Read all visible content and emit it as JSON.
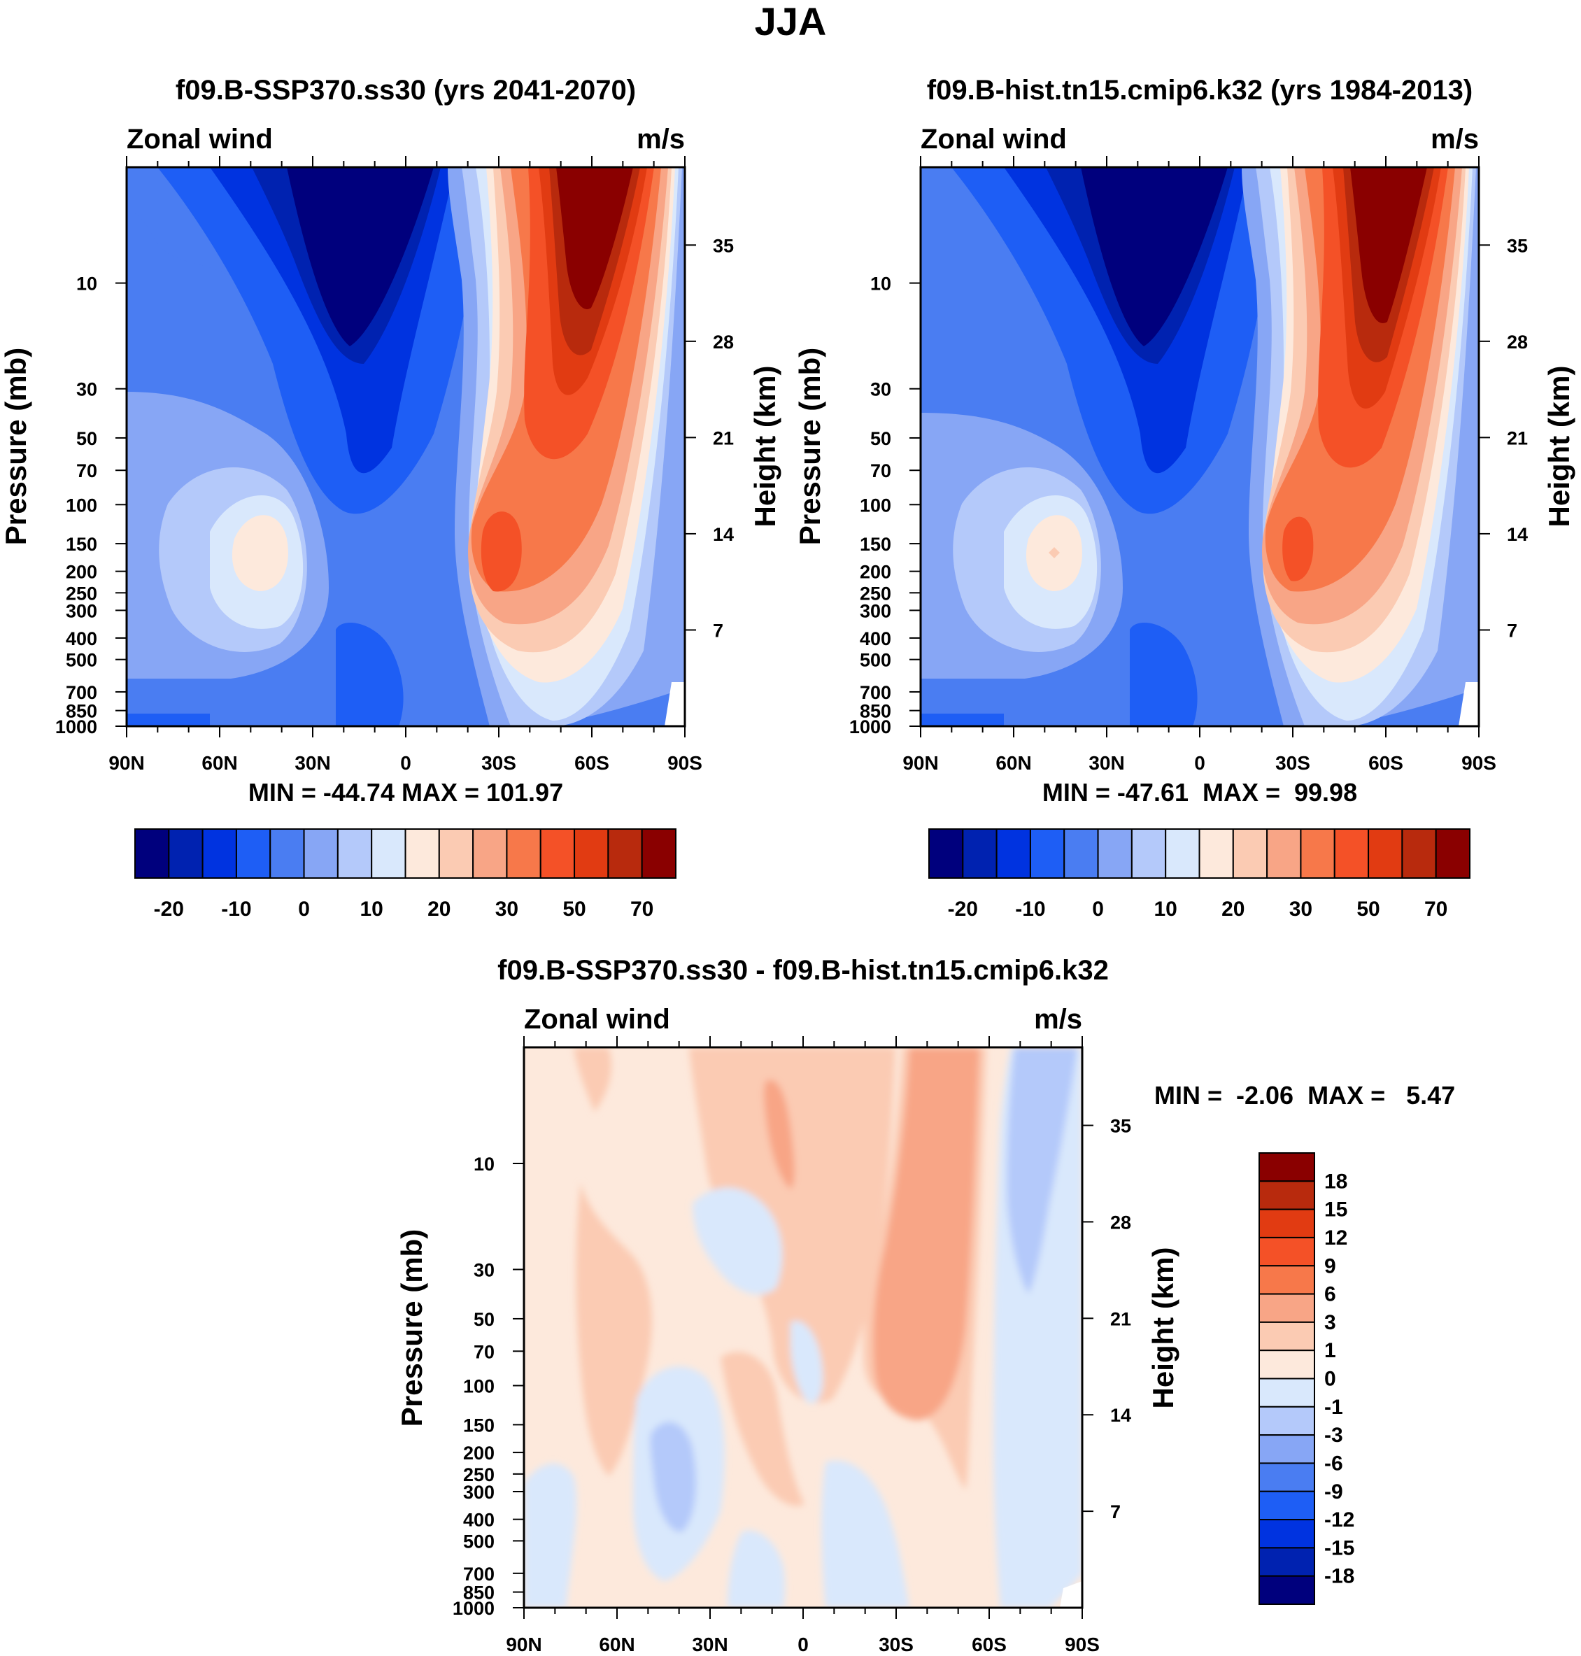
{
  "figure_title": "JJA",
  "colors": {
    "full_scale": [
      "#00007d",
      "#0022b0",
      "#0033e0",
      "#1e5ef5",
      "#4a7df2",
      "#87a6f5",
      "#b4c9fa",
      "#d9e8fc",
      "#fde9dc",
      "#fbcbb3",
      "#f8a586",
      "#f7784a",
      "#f45127",
      "#e13b12",
      "#b82a0d",
      "#8a0000"
    ],
    "diff_scale": [
      "#00007d",
      "#0022b0",
      "#0033e0",
      "#1e5ef5",
      "#4a7df2",
      "#87a6f5",
      "#b4c9fa",
      "#d9e8fc",
      "#fde9dc",
      "#fbcbb3",
      "#f8a586",
      "#f7784a",
      "#f45127",
      "#e13b12",
      "#b82a0d",
      "#8a0000"
    ]
  },
  "chart_data": [
    {
      "type": "heatmap",
      "title": "f09.B-SSP370.ss30 (yrs 2041-2070)",
      "field_label": "Zonal wind",
      "units_label": "m/s",
      "ylabel": "Pressure (mb)",
      "ylabel_right": "Height (km)",
      "x_ticks": [
        "90N",
        "60N",
        "30N",
        "0",
        "30S",
        "60S",
        "90S"
      ],
      "y_ticks": [
        "10",
        "30",
        "50",
        "70",
        "100",
        "150",
        "200",
        "250",
        "300",
        "400",
        "500",
        "700",
        "850",
        "1000"
      ],
      "height_ticks": [
        "35",
        "28",
        "21",
        "14",
        "7"
      ],
      "stats": "MIN = -44.74  MAX = 101.97",
      "colorbar_labels": [
        "-20",
        "-10",
        "0",
        "10",
        "20",
        "30",
        "50",
        "70"
      ],
      "extrema": {
        "min": -44.74,
        "max": 101.97
      }
    },
    {
      "type": "heatmap",
      "title": "f09.B-hist.tn15.cmip6.k32 (yrs 1984-2013)",
      "field_label": "Zonal wind",
      "units_label": "m/s",
      "ylabel": "Pressure (mb)",
      "ylabel_right": "Height (km)",
      "x_ticks": [
        "90N",
        "60N",
        "30N",
        "0",
        "30S",
        "60S",
        "90S"
      ],
      "y_ticks": [
        "10",
        "30",
        "50",
        "70",
        "100",
        "150",
        "200",
        "250",
        "300",
        "400",
        "500",
        "700",
        "850",
        "1000"
      ],
      "height_ticks": [
        "35",
        "28",
        "21",
        "14",
        "7"
      ],
      "stats": "MIN = -47.61  MAX =  99.98",
      "colorbar_labels": [
        "-20",
        "-10",
        "0",
        "10",
        "20",
        "30",
        "50",
        "70"
      ],
      "extrema": {
        "min": -47.61,
        "max": 99.98
      }
    },
    {
      "type": "heatmap",
      "title": "f09.B-SSP370.ss30 - f09.B-hist.tn15.cmip6.k32",
      "field_label": "Zonal wind",
      "units_label": "m/s",
      "ylabel": "Pressure (mb)",
      "ylabel_right": "Height (km)",
      "x_ticks": [
        "90N",
        "60N",
        "30N",
        "0",
        "30S",
        "60S",
        "90S"
      ],
      "y_ticks": [
        "10",
        "30",
        "50",
        "70",
        "100",
        "150",
        "200",
        "250",
        "300",
        "400",
        "500",
        "700",
        "850",
        "1000"
      ],
      "height_ticks": [
        "35",
        "28",
        "21",
        "14",
        "7"
      ],
      "stats": "MIN =  -2.06  MAX =   5.47",
      "colorbar_labels": [
        "18",
        "15",
        "12",
        "9",
        "6",
        "3",
        "1",
        "0",
        "-1",
        "-3",
        "-6",
        "-9",
        "-12",
        "-15",
        "-18"
      ],
      "extrema": {
        "min": -2.06,
        "max": 5.47
      }
    }
  ]
}
